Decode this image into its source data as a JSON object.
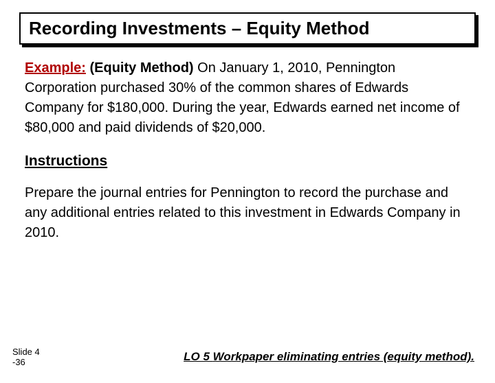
{
  "title": "Recording Investments – Equity Method",
  "example": {
    "label": "Example:",
    "method": "(Equity Method)",
    "text_rest": "  On January 1, 2010, Pennington Corporation purchased 30% of the common shares of Edwards Company for $180,000. During the year, Edwards earned net income of $80,000 and paid dividends of $20,000."
  },
  "instructions": {
    "heading": "Instructions",
    "text": "Prepare the journal entries for Pennington to record the purchase and any additional entries related to this investment in Edwards Company in 2010."
  },
  "footer": {
    "slide_line1": "Slide 4",
    "slide_line2": "-36",
    "lo_prefix": "LO 5  ",
    "lo_text": "Workpaper eliminating entries (equity method)."
  },
  "colors": {
    "accent_red": "#b00000",
    "text": "#000000",
    "background": "#ffffff"
  }
}
